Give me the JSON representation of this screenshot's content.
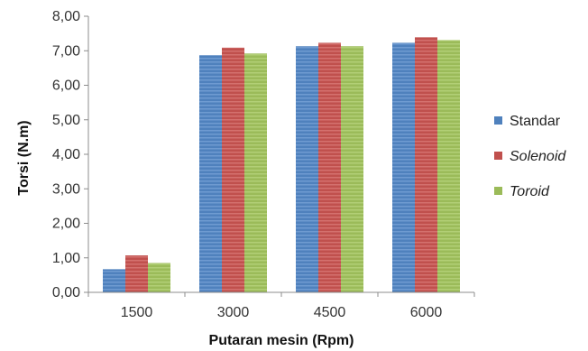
{
  "chart_data": {
    "type": "bar",
    "categories": [
      "1500",
      "3000",
      "4500",
      "6000"
    ],
    "series": [
      {
        "name": "Standar",
        "values": [
          0.67,
          6.87,
          7.13,
          7.23
        ],
        "color": "#4f81bd",
        "italic": false
      },
      {
        "name": "Solenoid",
        "values": [
          1.07,
          7.09,
          7.23,
          7.39
        ],
        "color": "#c0504d",
        "italic": true
      },
      {
        "name": "Toroid",
        "values": [
          0.85,
          6.92,
          7.13,
          7.31
        ],
        "color": "#9bbb59",
        "italic": true
      }
    ],
    "title": "",
    "xlabel": "Putaran mesin (Rpm)",
    "ylabel": "Torsi (N.m)",
    "ylim": [
      0,
      8
    ],
    "yticks": [
      "0,00",
      "1,00",
      "2,00",
      "3,00",
      "4,00",
      "5,00",
      "6,00",
      "7,00",
      "8,00"
    ],
    "grid": false,
    "legend_position": "right"
  }
}
